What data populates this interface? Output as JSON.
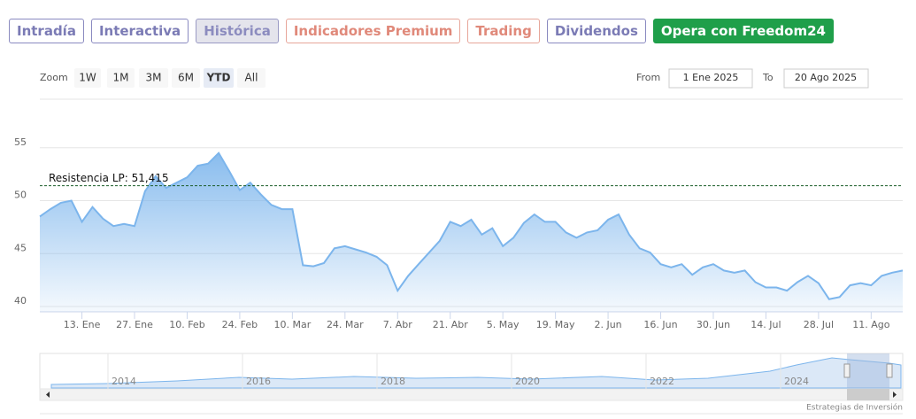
{
  "tabs": [
    "Intradía",
    "Interactiva",
    "Histórica",
    "Indicadores Premium",
    "Trading",
    "Dividendos",
    "Opera con Freedom24"
  ],
  "zoom": {
    "label": "Zoom",
    "buttons": [
      "1W",
      "1M",
      "3M",
      "6M",
      "YTD",
      "All"
    ]
  },
  "range": {
    "from_label": "From",
    "from": "1 Ene 2025",
    "to_label": "To",
    "to": "20 Ago 2025"
  },
  "chart_data": {
    "type": "area",
    "categories": [
      null,
      null,
      null,
      null,
      "13. Ene",
      null,
      null,
      null,
      null,
      "27. Ene",
      null,
      null,
      null,
      null,
      "10. Feb",
      null,
      null,
      null,
      null,
      "24. Feb",
      null,
      null,
      null,
      null,
      "10. Mar",
      null,
      null,
      null,
      null,
      "24. Mar",
      null,
      null,
      null,
      null,
      "7. Abr",
      null,
      null,
      null,
      null,
      "21. Abr",
      null,
      null,
      null,
      null,
      "5. May",
      null,
      null,
      null,
      null,
      "19. May",
      null,
      null,
      null,
      null,
      "2. Jun",
      null,
      null,
      null,
      null,
      "16. Jun",
      null,
      null,
      null,
      null,
      "30. Jun",
      null,
      null,
      null,
      null,
      "14. Jul",
      null,
      null,
      null,
      null,
      "28. Jul",
      null,
      null,
      null,
      null,
      "11. Ago",
      null,
      null,
      null
    ],
    "series": [
      {
        "color": "#7cb5ec",
        "values": [
          48.5,
          49.2,
          49.8,
          50.0,
          48.0,
          49.4,
          48.3,
          47.6,
          47.8,
          47.6,
          50.9,
          52.3,
          51.2,
          51.7,
          52.2,
          53.3,
          53.5,
          54.5,
          52.8,
          51.0,
          51.7,
          50.6,
          49.6,
          49.2,
          49.2,
          43.9,
          43.8,
          44.1,
          45.5,
          45.7,
          45.4,
          45.1,
          44.7,
          43.9,
          41.5,
          42.9,
          44.0,
          45.1,
          46.2,
          48.0,
          47.6,
          48.2,
          46.8,
          47.4,
          45.7,
          46.5,
          47.9,
          48.7,
          48.0,
          48.0,
          47.0,
          46.5,
          47.0,
          47.2,
          48.2,
          48.7,
          46.8,
          45.5,
          45.1,
          44.0,
          43.7,
          44.0,
          43.0,
          43.7,
          44.0,
          43.4,
          43.2,
          43.4,
          42.3,
          41.8,
          41.8,
          41.5,
          42.3,
          42.9,
          42.2,
          40.7,
          40.9,
          42.0,
          42.2,
          42.0,
          42.9,
          43.2,
          43.4
        ]
      }
    ],
    "ylim": [
      39.5,
      59.5
    ],
    "yticks": [
      40,
      45,
      50,
      55
    ],
    "grid": true,
    "annotation": {
      "label": "Resistencia LP: 51,415",
      "value": 51.415
    }
  },
  "navigator": {
    "labels": [
      "2014",
      "2016",
      "2018",
      "2020",
      "2022",
      "2024"
    ]
  },
  "credits": "Estrategias de Inversión"
}
